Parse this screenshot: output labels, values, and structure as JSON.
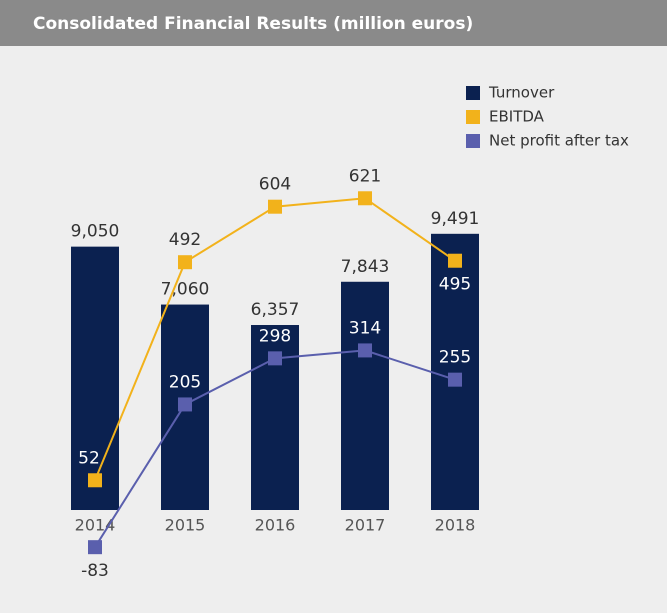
{
  "chart_data": {
    "type": "bar-line",
    "title": "Consolidated Financial Results (million euros)",
    "categories": [
      "2014",
      "2015",
      "2016",
      "2017",
      "2018"
    ],
    "series": [
      {
        "name": "Turnover",
        "type": "bar",
        "color": "#0b2150",
        "values": [
          9050,
          7060,
          6357,
          7843,
          9491
        ],
        "value_labels": [
          "9,050",
          "7,060",
          "6,357",
          "7,843",
          "9,491"
        ]
      },
      {
        "name": "EBITDA",
        "type": "line",
        "axis": "y2",
        "color": "#f2b21b",
        "values": [
          52,
          492,
          604,
          621,
          495
        ]
      },
      {
        "name": "Net profit after tax",
        "type": "line",
        "axis": "y2",
        "color": "#5a5fad",
        "values": [
          -83,
          205,
          298,
          314,
          255
        ]
      }
    ],
    "ylim": [
      0,
      10000
    ],
    "y2lim": [
      -100,
      650
    ],
    "legend": "top-right"
  }
}
